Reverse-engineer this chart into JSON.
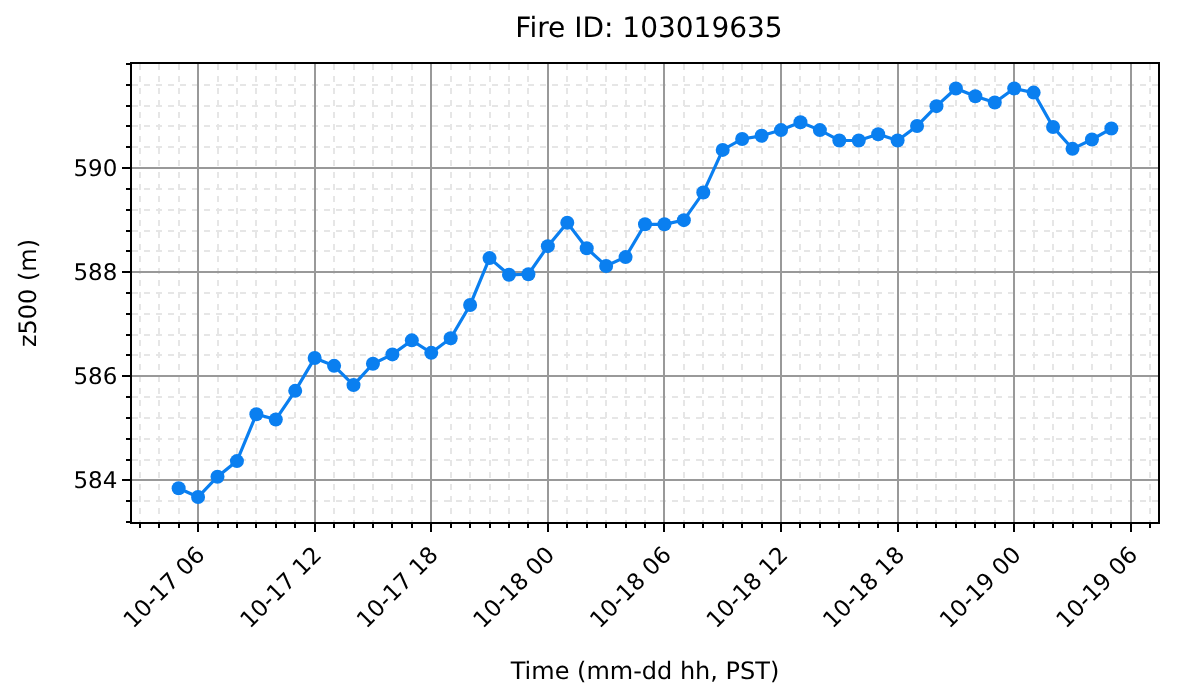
{
  "chart_data": {
    "type": "line",
    "title": "Fire ID: 103019635",
    "xlabel": "Time (mm-dd hh, PST)",
    "ylabel": "z500 (m)",
    "x": [
      "--10-17T05:00",
      "--10-17T06:00",
      "--10-17T07:00",
      "--10-17T08:00",
      "--10-17T09:00",
      "--10-17T10:00",
      "--10-17T11:00",
      "--10-17T12:00",
      "--10-17T13:00",
      "--10-17T14:00",
      "--10-17T15:00",
      "--10-17T16:00",
      "--10-17T17:00",
      "--10-17T18:00",
      "--10-17T19:00",
      "--10-17T20:00",
      "--10-17T21:00",
      "--10-17T22:00",
      "--10-17T23:00",
      "--10-18T00:00",
      "--10-18T01:00",
      "--10-18T02:00",
      "--10-18T03:00",
      "--10-18T04:00",
      "--10-18T05:00",
      "--10-18T06:00",
      "--10-18T07:00",
      "--10-18T08:00",
      "--10-18T09:00",
      "--10-18T10:00",
      "--10-18T11:00",
      "--10-18T12:00",
      "--10-18T13:00",
      "--10-18T14:00",
      "--10-18T15:00",
      "--10-18T16:00",
      "--10-18T17:00",
      "--10-18T18:00",
      "--10-18T19:00",
      "--10-18T20:00",
      "--10-18T21:00",
      "--10-18T22:00",
      "--10-18T23:00",
      "--10-19T00:00",
      "--10-19T01:00",
      "--10-19T02:00",
      "--10-19T03:00",
      "--10-19T04:00",
      "--10-19T05:00"
    ],
    "series": [
      {
        "color": "#0a7ff0",
        "values": [
          583.85,
          583.68,
          584.07,
          584.37,
          585.27,
          585.17,
          585.72,
          586.35,
          586.2,
          585.83,
          586.24,
          586.42,
          586.69,
          586.45,
          586.73,
          587.37,
          588.27,
          587.95,
          587.96,
          588.5,
          588.95,
          588.46,
          588.12,
          588.29,
          588.92,
          588.92,
          589.0,
          589.53,
          590.35,
          590.56,
          590.62,
          590.73,
          590.88,
          590.73,
          590.53,
          590.53,
          590.65,
          590.53,
          590.81,
          591.19,
          591.53,
          591.38,
          591.26,
          591.53,
          591.45,
          590.79,
          590.37,
          590.55,
          590.76
        ]
      }
    ],
    "xlim": [
      "--10-17T02:36",
      "--10-19T07:24"
    ],
    "xticks": [
      {
        "value": "--10-17T06:00",
        "label": "10-17 06"
      },
      {
        "value": "--10-17T12:00",
        "label": "10-17 12"
      },
      {
        "value": "--10-17T18:00",
        "label": "10-17 18"
      },
      {
        "value": "--10-18T00:00",
        "label": "10-18 00"
      },
      {
        "value": "--10-18T06:00",
        "label": "10-18 06"
      },
      {
        "value": "--10-18T12:00",
        "label": "10-18 12"
      },
      {
        "value": "--10-18T18:00",
        "label": "10-18 18"
      },
      {
        "value": "--10-19T00:00",
        "label": "10-19 00"
      },
      {
        "value": "--10-19T06:00",
        "label": "10-19 06"
      },
      {
        "value": "--10-17T03:00",
        "label": null
      },
      {
        "value": "--10-17T04:00",
        "label": null
      },
      {
        "value": "--10-17T05:00",
        "label": null
      },
      {
        "value": "--10-17T07:00",
        "label": null
      },
      {
        "value": "--10-17T08:00",
        "label": null
      },
      {
        "value": "--10-17T09:00",
        "label": null
      },
      {
        "value": "--10-17T10:00",
        "label": null
      },
      {
        "value": "--10-17T11:00",
        "label": null
      },
      {
        "value": "--10-17T13:00",
        "label": null
      },
      {
        "value": "--10-17T14:00",
        "label": null
      },
      {
        "value": "--10-17T15:00",
        "label": null
      },
      {
        "value": "--10-17T16:00",
        "label": null
      },
      {
        "value": "--10-17T17:00",
        "label": null
      },
      {
        "value": "--10-17T19:00",
        "label": null
      },
      {
        "value": "--10-17T20:00",
        "label": null
      },
      {
        "value": "--10-17T21:00",
        "label": null
      },
      {
        "value": "--10-17T22:00",
        "label": null
      },
      {
        "value": "--10-17T23:00",
        "label": null
      },
      {
        "value": "--10-18T01:00",
        "label": null
      },
      {
        "value": "--10-18T02:00",
        "label": null
      },
      {
        "value": "--10-18T03:00",
        "label": null
      },
      {
        "value": "--10-18T04:00",
        "label": null
      },
      {
        "value": "--10-18T05:00",
        "label": null
      },
      {
        "value": "--10-18T07:00",
        "label": null
      },
      {
        "value": "--10-18T08:00",
        "label": null
      },
      {
        "value": "--10-18T09:00",
        "label": null
      },
      {
        "value": "--10-18T10:00",
        "label": null
      },
      {
        "value": "--10-18T11:00",
        "label": null
      },
      {
        "value": "--10-18T13:00",
        "label": null
      },
      {
        "value": "--10-18T14:00",
        "label": null
      },
      {
        "value": "--10-18T15:00",
        "label": null
      },
      {
        "value": "--10-18T16:00",
        "label": null
      },
      {
        "value": "--10-18T17:00",
        "label": null
      },
      {
        "value": "--10-18T19:00",
        "label": null
      },
      {
        "value": "--10-18T20:00",
        "label": null
      },
      {
        "value": "--10-18T21:00",
        "label": null
      },
      {
        "value": "--10-18T22:00",
        "label": null
      },
      {
        "value": "--10-18T23:00",
        "label": null
      },
      {
        "value": "--10-19T01:00",
        "label": null
      },
      {
        "value": "--10-19T02:00",
        "label": null
      },
      {
        "value": "--10-19T03:00",
        "label": null
      },
      {
        "value": "--10-19T04:00",
        "label": null
      },
      {
        "value": "--10-19T05:00",
        "label": null
      },
      {
        "value": "--10-19T07:00",
        "label": null
      }
    ],
    "ylim": [
      583.2,
      592.0
    ],
    "yticks": [
      584,
      586,
      588,
      590,
      {
        "value": 583.2,
        "label": null
      },
      {
        "value": 583.6,
        "label": null
      },
      {
        "value": 584.4,
        "label": null
      },
      {
        "value": 584.8,
        "label": null
      },
      {
        "value": 585.2,
        "label": null
      },
      {
        "value": 585.6,
        "label": null
      },
      {
        "value": 586.4,
        "label": null
      },
      {
        "value": 586.8,
        "label": null
      },
      {
        "value": 587.2,
        "label": null
      },
      {
        "value": 587.6,
        "label": null
      },
      {
        "value": 588.4,
        "label": null
      },
      {
        "value": 588.8,
        "label": null
      },
      {
        "value": 589.2,
        "label": null
      },
      {
        "value": 589.6,
        "label": null
      },
      {
        "value": 590.4,
        "label": null
      },
      {
        "value": 590.8,
        "label": null
      },
      {
        "value": 591.2,
        "label": null
      },
      {
        "value": 591.6,
        "label": null
      },
      {
        "value": 592.0,
        "label": null
      }
    ],
    "grid": true,
    "marker": "circle",
    "line_style": "solid"
  }
}
